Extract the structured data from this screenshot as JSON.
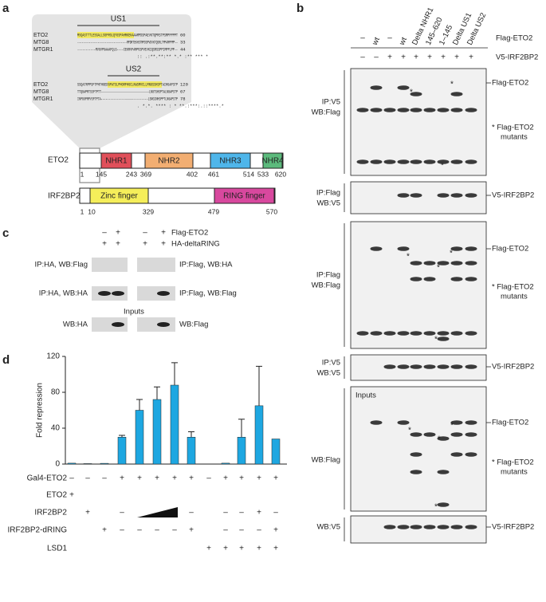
{
  "figure": {
    "panel_labels": {
      "a": "a",
      "b": "b",
      "c": "c",
      "d": "d"
    },
    "panel_a": {
      "us1": {
        "title": "US1",
        "rows": [
          {
            "name": "ETO2",
            "sequence": "MSQASTTTLESGALLSGFRGLQYGSPAHRKEKAAAMPDSPAEVKTQPRSTPSMPFPPPT",
            "end": 60
          },
          {
            "name": "MTG8",
            "sequence": "----------------------------------MPDRTEKHSTMPDSPVDVKTQSRLTPPAMPPPP--",
            "end": 33
          },
          {
            "name": "MTGR1",
            "sequence": "-----------MVGVPGAAAFQLG----CEKRVFAMPGSPVEVKIQSRSSPPIMPPLPP--",
            "end": 44
          }
        ],
        "consensus": ":: .:**.**:** *.* :** *** *"
      },
      "us2": {
        "title": "US2",
        "rows": [
          {
            "name": "ETO2",
            "sequence": "SSQATRPPSFTPHTHGEDGPATSLPHGRFHGCLKWSMVCLLMNGSSHSPTAIHGAPSTP",
            "end": 120
          },
          {
            "name": "MTG8",
            "sequence": "TTQGAPRTSSFTPTT------------------------------LNGTSHSPTALNGAPSTP",
            "end": 67
          },
          {
            "name": "MTGR1",
            "sequence": "INPGGPRPVSFTPTA------------------------------LSNGINHSPPTLNGAPSTP",
            "end": 78
          }
        ],
        "consensus": ". *.*. ****  :  * **.:***:.::****.*"
      },
      "eto2": {
        "name": "ETO2",
        "domains": [
          "NHR1",
          "NHR2",
          "NHR3",
          "NHR4"
        ],
        "positions": [
          1,
          145,
          243,
          369,
          402,
          461,
          514,
          533,
          620
        ]
      },
      "irf2bp2": {
        "name": "IRF2BP2",
        "domains": [
          "Zinc finger",
          "RING finger"
        ],
        "positions": [
          1,
          10,
          329,
          479,
          570
        ]
      }
    },
    "panel_b": {
      "columns": [
        "–",
        "wt",
        "–",
        "wt",
        "Delta NHR1",
        "145–620",
        "1–145",
        "Delta US1",
        "Delta US2"
      ],
      "flag_label": "Flag-ETO2",
      "v5_signs": [
        "–",
        "–",
        "+",
        "+",
        "+",
        "+",
        "+",
        "+",
        "+"
      ],
      "v5_label": "V5-IRF2BP2",
      "asterisk": "*",
      "inputs": "Inputs",
      "blots": [
        {
          "left": [
            "IP:V5",
            "WB:Flag"
          ],
          "right": [
            "Flag-ETO2",
            "* Flag-ETO2",
            "mutants"
          ]
        },
        {
          "left": [
            "IP:Flag",
            "WB:V5"
          ],
          "right": [
            "V5-IRF2BP2"
          ]
        },
        {
          "left": [
            "IP:Flag",
            "WB:Flag"
          ],
          "right": [
            "Flag-ETO2",
            "* Flag-ETO2",
            "mutants"
          ]
        },
        {
          "left": [
            "IP:V5",
            "WB:V5"
          ],
          "right": [
            "V5-IRF2BP2"
          ]
        },
        {
          "left": [
            "WB:Flag"
          ],
          "right": [
            "Flag-ETO2",
            "* Flag-ETO2",
            "mutants"
          ]
        },
        {
          "left": [
            "WB:V5"
          ],
          "right": [
            "V5-IRF2BP2"
          ]
        }
      ]
    },
    "panel_c": {
      "sign_rows": [
        {
          "signs": [
            "–",
            "+",
            "–",
            "+"
          ],
          "label": "Flag-ETO2"
        },
        {
          "signs": [
            "+",
            "+",
            "+",
            "+"
          ],
          "label": "HA-deltaRING"
        }
      ],
      "blots": [
        {
          "left": "IP:HA, WB:Flag",
          "right": "IP:Flag, WB:HA"
        },
        {
          "left": "IP:HA, WB:HA",
          "right": "IP:Flag, WB:Flag"
        },
        {
          "left": "WB:HA",
          "right": "WB:Flag"
        }
      ],
      "inputs": "Inputs"
    }
  },
  "chart_data": {
    "type": "bar",
    "y_label": "Fold repression",
    "values": [
      1,
      0.5,
      0.8,
      30,
      60,
      72,
      88,
      30,
      0,
      1,
      30,
      65,
      28
    ],
    "errors": [
      0,
      0,
      0,
      2,
      12,
      14,
      25,
      6,
      0,
      0,
      20,
      44,
      0
    ],
    "color": "#1ea7e1",
    "ylim": [
      0,
      120
    ],
    "yticks": [
      0,
      40,
      80,
      120
    ],
    "table": [
      {
        "label": "Gal4-ETO2",
        "cells": [
          "–",
          "–",
          "–",
          "+",
          "+",
          "+",
          "+",
          "+",
          "–",
          "+",
          "+",
          "+",
          "+"
        ]
      },
      {
        "label": "ETO2",
        "cells": [
          "+",
          null,
          null,
          null,
          null,
          null,
          null,
          null,
          null,
          null,
          null,
          null,
          null
        ]
      },
      {
        "label": "IRF2BP2",
        "cells": [
          null,
          "+",
          null,
          "–",
          null,
          null,
          null,
          "–",
          null,
          "–",
          "–",
          "+",
          "–"
        ]
      },
      {
        "label": "IRF2BP2-dRING",
        "cells": [
          null,
          null,
          "+",
          "–",
          "–",
          "–",
          "–",
          "+",
          null,
          "–",
          "–",
          "–",
          "+"
        ]
      },
      {
        "label": "LSD1",
        "cells": [
          null,
          null,
          null,
          null,
          null,
          null,
          null,
          null,
          "+",
          "+",
          "+",
          "+",
          "+"
        ]
      }
    ]
  }
}
